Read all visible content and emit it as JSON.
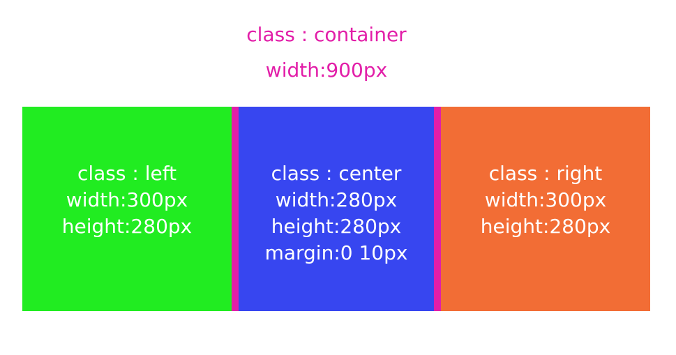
{
  "container": {
    "label_class": "class : container",
    "label_width": "width:900px",
    "caption_color": "#e21ea8",
    "margin_color": "#e21ea8"
  },
  "boxes": {
    "left": {
      "lines": [
        "class : left",
        "width:300px",
        "height:280px"
      ],
      "color": "#21ec21"
    },
    "center": {
      "lines": [
        "class : center",
        "width:280px",
        "height:280px",
        "margin:0 10px"
      ],
      "color": "#3746f0"
    },
    "right": {
      "lines": [
        "class : right",
        "width:300px",
        "height:280px"
      ],
      "color": "#f26d35"
    }
  }
}
